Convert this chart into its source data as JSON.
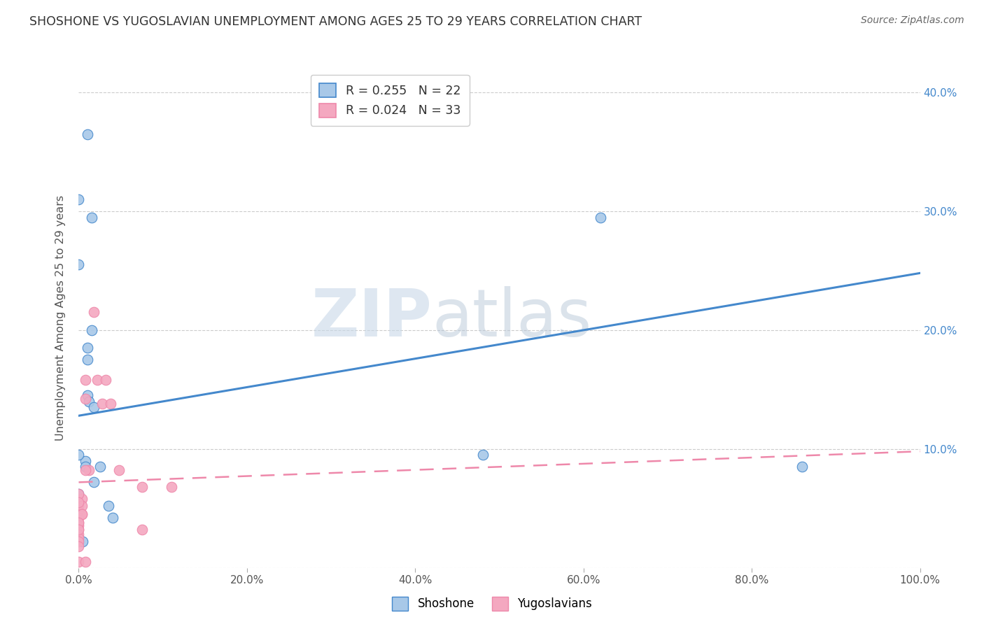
{
  "title": "SHOSHONE VS YUGOSLAVIAN UNEMPLOYMENT AMONG AGES 25 TO 29 YEARS CORRELATION CHART",
  "source": "Source: ZipAtlas.com",
  "xlabel": "",
  "ylabel": "Unemployment Among Ages 25 to 29 years",
  "xlim": [
    0,
    1.0
  ],
  "ylim": [
    0,
    0.42
  ],
  "xticks": [
    0.0,
    0.2,
    0.4,
    0.6,
    0.8,
    1.0
  ],
  "xticklabels": [
    "0.0%",
    "20.0%",
    "40.0%",
    "60.0%",
    "80.0%",
    "100.0%"
  ],
  "yticks": [
    0.0,
    0.1,
    0.2,
    0.3,
    0.4
  ],
  "yticklabels": [
    "",
    "",
    "",
    "",
    ""
  ],
  "right_yticks": [
    0.1,
    0.2,
    0.3,
    0.4
  ],
  "right_yticklabels": [
    "10.0%",
    "20.0%",
    "30.0%",
    "40.0%"
  ],
  "shoshone_color": "#a8c8e8",
  "yugoslavian_color": "#f4a8c0",
  "shoshone_R": 0.255,
  "shoshone_N": 22,
  "yugoslavian_R": 0.024,
  "yugoslavian_N": 33,
  "shoshone_line_color": "#4488cc",
  "yugoslavian_line_color": "#ee88aa",
  "watermark_zip": "ZIP",
  "watermark_atlas": "atlas",
  "shoshone_x": [
    0.01,
    0.015,
    0.0,
    0.015,
    0.01,
    0.01,
    0.01,
    0.012,
    0.018,
    0.008,
    0.0,
    0.008,
    0.025,
    0.018,
    0.0,
    0.48,
    0.62,
    0.86,
    0.0,
    0.035,
    0.04,
    0.005
  ],
  "shoshone_y": [
    0.365,
    0.295,
    0.255,
    0.2,
    0.185,
    0.175,
    0.145,
    0.14,
    0.135,
    0.09,
    0.095,
    0.085,
    0.085,
    0.072,
    0.062,
    0.095,
    0.295,
    0.085,
    0.31,
    0.052,
    0.042,
    0.022
  ],
  "yugoslavian_x": [
    0.0,
    0.0,
    0.0,
    0.0,
    0.0,
    0.0,
    0.0,
    0.0,
    0.0,
    0.0,
    0.004,
    0.004,
    0.004,
    0.008,
    0.008,
    0.012,
    0.018,
    0.022,
    0.028,
    0.032,
    0.038,
    0.048,
    0.008,
    0.0,
    0.0,
    0.004,
    0.0,
    0.0,
    0.0,
    0.008,
    0.075,
    0.075,
    0.11
  ],
  "yugoslavian_y": [
    0.052,
    0.048,
    0.042,
    0.038,
    0.036,
    0.032,
    0.028,
    0.025,
    0.022,
    0.018,
    0.058,
    0.052,
    0.045,
    0.158,
    0.142,
    0.082,
    0.215,
    0.158,
    0.138,
    0.158,
    0.138,
    0.082,
    0.082,
    0.062,
    0.055,
    0.045,
    0.038,
    0.032,
    0.005,
    0.005,
    0.068,
    0.032,
    0.068
  ],
  "shoshone_trend_x": [
    0.0,
    1.0
  ],
  "shoshone_trend_y": [
    0.128,
    0.248
  ],
  "yugoslavian_trend_x": [
    0.0,
    1.0
  ],
  "yugoslavian_trend_y": [
    0.072,
    0.098
  ]
}
